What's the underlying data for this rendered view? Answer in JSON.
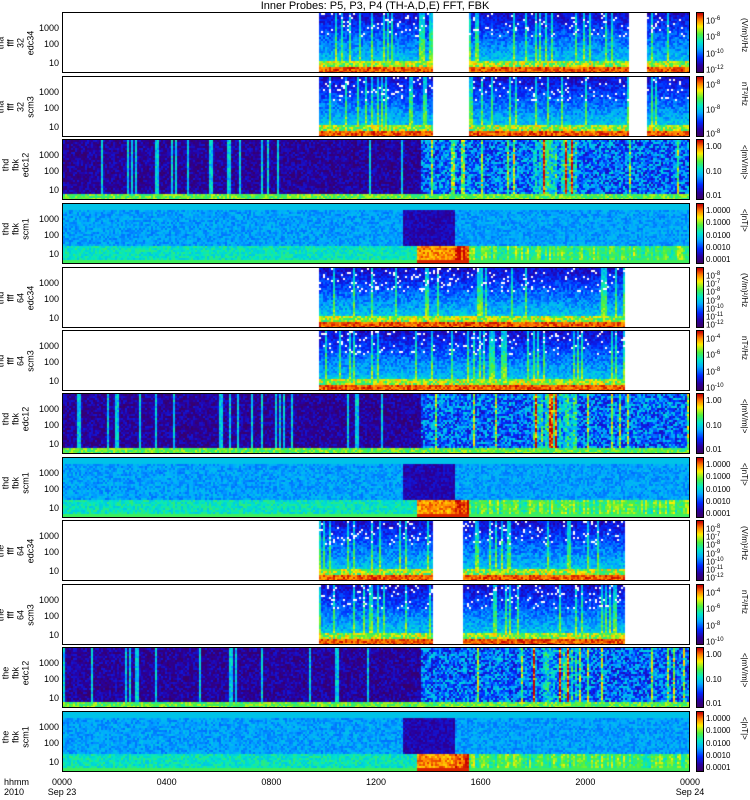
{
  "title": "Inner Probes: P5, P3, P4 (TH-A,D,E) FFT, FBK",
  "x_axis": {
    "side_label_top": "hhmm",
    "side_label_bottom": "2010",
    "ticks": [
      "0000",
      "0400",
      "0800",
      "1200",
      "1600",
      "2000",
      "0000"
    ],
    "dates": [
      "Sep 23",
      "Sep 24"
    ]
  },
  "colorscales": {
    "fft_e": {
      "ticks": [
        "10^-6",
        "10^-8",
        "10^-10",
        "10^-12"
      ],
      "unit": "(V/m)²/Hz"
    },
    "fft_b": {
      "ticks": [
        "10^-8",
        "10^-8",
        "10^-8"
      ],
      "unit": "nT²/Hz"
    },
    "fbk_e": {
      "ticks": [
        "1.00",
        "0.10",
        "0.01"
      ],
      "unit": "<|mV/m|>"
    },
    "fbk_b": {
      "ticks": [
        "1.0000",
        "0.1000",
        "0.0100",
        "0.0010",
        "0.0001"
      ],
      "unit": "<|nT|>"
    },
    "fft_e_d": {
      "ticks": [
        "10^-8",
        "10^-7",
        "10^-8",
        "10^-9",
        "10^-10",
        "10^-11",
        "10^-12"
      ],
      "unit": "(V/m)²/Hz"
    },
    "fft_b_d": {
      "ticks": [
        "10^-4",
        "10^-6",
        "10^-8",
        "10^-10"
      ],
      "unit": "nT²/Hz"
    },
    "fft_e_e": {
      "ticks": [
        "10^-8",
        "10^-7",
        "10^-8",
        "10^-9",
        "10^-10",
        "10^-11",
        "10^-12"
      ],
      "unit": "(V/m)²/Hz"
    },
    "fft_b_e": {
      "ticks": [
        "10^-4",
        "10^-6",
        "10^-8",
        "10^-10"
      ],
      "unit": "nT²/Hz"
    }
  },
  "chart_data": {
    "type": "heatmap",
    "title": "Inner Probes: P5, P3, P4 (TH-A,D,E) FFT, FBK",
    "x_range": [
      "2010-09-23 00:00",
      "2010-09-24 00:00"
    ],
    "y_scale": "log",
    "panels": [
      {
        "ylabel": [
          "tha",
          "fff",
          "32",
          "edc34"
        ],
        "yticks": [
          "1000",
          "100",
          "10"
        ],
        "colorscale": "fft_e",
        "data_gaps": [
          [
            "0000",
            "0945"
          ],
          [
            "1410",
            "1530"
          ],
          [
            "2140",
            "2220"
          ]
        ]
      },
      {
        "ylabel": [
          "tha",
          "fff",
          "32",
          "scm3"
        ],
        "yticks": [
          "1000",
          "100",
          "10"
        ],
        "colorscale": "fft_b",
        "data_gaps": [
          [
            "0000",
            "0945"
          ],
          [
            "1410",
            "1530"
          ],
          [
            "2140",
            "2220"
          ]
        ]
      },
      {
        "ylabel": [
          "thd",
          "fbk",
          "edc12"
        ],
        "yticks": [
          "1000",
          "100",
          "10"
        ],
        "colorscale": "fbk_e"
      },
      {
        "ylabel": [
          "thd",
          "fbk",
          "scm1"
        ],
        "yticks": [
          "1000",
          "100",
          "10"
        ],
        "colorscale": "fbk_b"
      },
      {
        "ylabel": [
          "thd",
          "fff",
          "64",
          "edc34"
        ],
        "yticks": [
          "1000",
          "100",
          "10"
        ],
        "colorscale": "fft_e_d",
        "data_gaps": [
          [
            "0000",
            "0945"
          ],
          [
            "2130",
            "2400"
          ]
        ]
      },
      {
        "ylabel": [
          "thd",
          "fff",
          "64",
          "scm3"
        ],
        "yticks": [
          "1000",
          "100",
          "10"
        ],
        "colorscale": "fft_b_d",
        "data_gaps": [
          [
            "0000",
            "0945"
          ],
          [
            "2130",
            "2400"
          ]
        ]
      },
      {
        "ylabel": [
          "thd",
          "fbk",
          "edc12"
        ],
        "yticks": [
          "1000",
          "100",
          "10"
        ],
        "colorscale": "fbk_e"
      },
      {
        "ylabel": [
          "thd",
          "fbk",
          "scm1"
        ],
        "yticks": [
          "1000",
          "100",
          "10"
        ],
        "colorscale": "fbk_b"
      },
      {
        "ylabel": [
          "the",
          "fff",
          "64",
          "edc34"
        ],
        "yticks": [
          "1000",
          "100",
          "10"
        ],
        "colorscale": "fft_e_e",
        "data_gaps": [
          [
            "0000",
            "0945"
          ],
          [
            "1410",
            "1520"
          ],
          [
            "2130",
            "2400"
          ]
        ]
      },
      {
        "ylabel": [
          "the",
          "fff",
          "64",
          "scm3"
        ],
        "yticks": [
          "1000",
          "100",
          "10"
        ],
        "colorscale": "fft_b_e",
        "data_gaps": [
          [
            "0000",
            "0945"
          ],
          [
            "1410",
            "1520"
          ],
          [
            "2130",
            "2400"
          ]
        ]
      },
      {
        "ylabel": [
          "the",
          "fbk",
          "edc12"
        ],
        "yticks": [
          "1000",
          "100",
          "10"
        ],
        "colorscale": "fbk_e"
      },
      {
        "ylabel": [
          "the",
          "fbk",
          "scm1"
        ],
        "yticks": [
          "1000",
          "100",
          "10"
        ],
        "colorscale": "fbk_b"
      }
    ]
  }
}
